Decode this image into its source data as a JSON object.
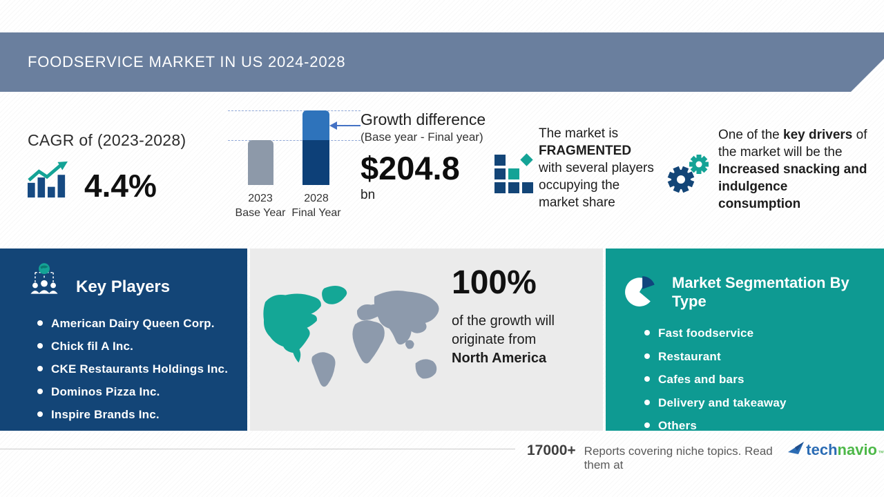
{
  "header": {
    "title": "FOODSERVICE MARKET IN US 2024-2028"
  },
  "cagr": {
    "label": "CAGR of (2023-2028)",
    "value": "4.4%"
  },
  "chart_data": {
    "type": "bar",
    "categories": [
      "2023 Base Year",
      "2028 Final Year"
    ],
    "values": [
      65,
      108
    ],
    "title": "Market size growth, base year vs final year",
    "xlabel": "",
    "ylabel": "",
    "axis_shown": false,
    "note": "values are relative bar heights in px; no numeric axis shown",
    "annotation": "Growth difference (Base year - Final year): $204.8 bn",
    "bar_colors": {
      "2023": "#8d99a9",
      "2028_top": "#2e73bb",
      "2028_bottom": "#0d4078"
    }
  },
  "bar_chart": {
    "bars": [
      {
        "year": "2023",
        "label": "Base Year"
      },
      {
        "year": "2028",
        "label": "Final Year"
      }
    ]
  },
  "growth": {
    "title": "Growth difference",
    "subtitle": "(Base year - Final year)",
    "value": "$204.8",
    "unit": "bn"
  },
  "fragmented": {
    "seg1": "The market is ",
    "emphasis": "FRAGMENTED",
    "seg2": " with several players occupying the market share"
  },
  "key_driver": {
    "seg1": "One of the ",
    "bold1": "key drivers",
    "seg2": " of the market will be the ",
    "bold2": "Increased snacking and indulgence consumption"
  },
  "key_players": {
    "title": "Key Players",
    "items": [
      "American Dairy Queen Corp.",
      "Chick fil A Inc.",
      "CKE Restaurants Holdings Inc.",
      "Dominos Pizza Inc.",
      "Inspire Brands Inc."
    ]
  },
  "map_section": {
    "stat": "100%",
    "line1": "of the growth will",
    "line2": "originate from",
    "region": "North America"
  },
  "segmentation": {
    "title": "Market Segmentation By Type",
    "items": [
      "Fast foodservice",
      "Restaurant",
      "Cafes and bars",
      "Delivery and takeaway",
      "Others"
    ]
  },
  "footer": {
    "count": "17000+",
    "text": "Reports covering niche topics. Read them at",
    "brand_tech": "tech",
    "brand_navio": "navio",
    "tm": "™"
  },
  "icons": {
    "cagr-growth-icon": "navy bar chart with teal rising arrow",
    "fragmented-icon": "staircase of navy squares with teal square and teal diamond",
    "gears-icon": "large navy gear with small teal gear",
    "key-players-icon": "teal globe linked by dashed lines to three white person silhouettes",
    "world-map": "world map, North America and Greenland teal, other continents gray",
    "pie-chart-icon": "white pie with navy wedge on teal background",
    "technavio-logo-icon": "blue paper-plane flag"
  },
  "colors": {
    "header_bg": "#6a7f9e",
    "navy_panel": "#134577",
    "teal_panel": "#0e9a92",
    "map_panel_bg": "#ebebeb",
    "map_gray": "#8d9aac",
    "map_teal": "#14a796",
    "bar_2023": "#8d99a9",
    "bar_2028_top": "#2e73bb",
    "bar_2028_bottom": "#0d4078",
    "arrow_blue": "#4472c4",
    "logo_blue": "#2b6cb4",
    "logo_green": "#4db848"
  }
}
